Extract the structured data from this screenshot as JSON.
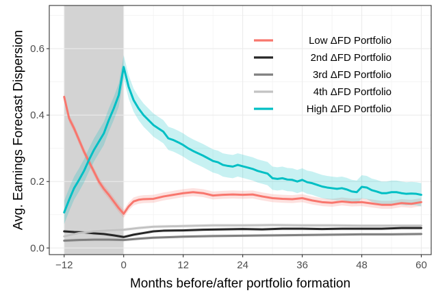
{
  "chart_data": {
    "type": "line",
    "title": "",
    "xlabel": "Months before/after portfolio formation",
    "ylabel": "Avg. Earnings Forecast Dispersion",
    "xlim": [
      -15,
      62
    ],
    "ylim": [
      -0.02,
      0.73
    ],
    "xticks": [
      -12,
      0,
      12,
      24,
      36,
      48,
      60
    ],
    "xtick_labels": [
      "−12",
      "0",
      "12",
      "24",
      "36",
      "48",
      "60"
    ],
    "yticks": [
      0.0,
      0.2,
      0.4,
      0.6
    ],
    "ytick_labels": [
      "0.0",
      "0.2",
      "0.4",
      "0.6"
    ],
    "grid": true,
    "legend_position": "top-right",
    "shaded_region": {
      "x_start": -12,
      "x_end": 0,
      "color": "#d3d3d3"
    },
    "series": [
      {
        "name": "Low ΔFD Portfolio",
        "color": "#f8766d",
        "band_color": "#f8766d",
        "points": [
          [
            -12,
            0.455
          ],
          [
            -11,
            0.39
          ],
          [
            -10,
            0.36
          ],
          [
            -9,
            0.325
          ],
          [
            -8,
            0.29
          ],
          [
            -7,
            0.26
          ],
          [
            -6,
            0.23
          ],
          [
            -5,
            0.2
          ],
          [
            -4,
            0.178
          ],
          [
            -3,
            0.16
          ],
          [
            -2,
            0.14
          ],
          [
            -1,
            0.12
          ],
          [
            0,
            0.103
          ],
          [
            1,
            0.125
          ],
          [
            2,
            0.14
          ],
          [
            3,
            0.145
          ],
          [
            4,
            0.147
          ],
          [
            6,
            0.148
          ],
          [
            8,
            0.155
          ],
          [
            10,
            0.16
          ],
          [
            12,
            0.165
          ],
          [
            14,
            0.168
          ],
          [
            16,
            0.165
          ],
          [
            18,
            0.158
          ],
          [
            20,
            0.16
          ],
          [
            22,
            0.161
          ],
          [
            24,
            0.16
          ],
          [
            26,
            0.161
          ],
          [
            28,
            0.155
          ],
          [
            30,
            0.15
          ],
          [
            32,
            0.148
          ],
          [
            34,
            0.147
          ],
          [
            36,
            0.15
          ],
          [
            38,
            0.143
          ],
          [
            40,
            0.138
          ],
          [
            42,
            0.136
          ],
          [
            44,
            0.14
          ],
          [
            46,
            0.137
          ],
          [
            48,
            0.138
          ],
          [
            50,
            0.134
          ],
          [
            52,
            0.13
          ],
          [
            54,
            0.13
          ],
          [
            56,
            0.135
          ],
          [
            58,
            0.133
          ],
          [
            60,
            0.138
          ]
        ],
        "band": 0.012
      },
      {
        "name": "2nd ΔFD Portfolio",
        "color": "#262626",
        "band_color": "#999999",
        "points": [
          [
            -12,
            0.05
          ],
          [
            -10,
            0.048
          ],
          [
            -8,
            0.047
          ],
          [
            -6,
            0.044
          ],
          [
            -4,
            0.042
          ],
          [
            -2,
            0.038
          ],
          [
            0,
            0.033
          ],
          [
            2,
            0.04
          ],
          [
            4,
            0.045
          ],
          [
            6,
            0.05
          ],
          [
            8,
            0.052
          ],
          [
            12,
            0.053
          ],
          [
            16,
            0.055
          ],
          [
            20,
            0.056
          ],
          [
            24,
            0.057
          ],
          [
            28,
            0.056
          ],
          [
            32,
            0.058
          ],
          [
            36,
            0.058
          ],
          [
            40,
            0.057
          ],
          [
            44,
            0.058
          ],
          [
            48,
            0.058
          ],
          [
            52,
            0.058
          ],
          [
            56,
            0.06
          ],
          [
            60,
            0.06
          ]
        ],
        "band": 0.005
      },
      {
        "name": "3rd ΔFD Portfolio",
        "color": "#7f7f7f",
        "band_color": "#b0b0b0",
        "points": [
          [
            -12,
            0.022
          ],
          [
            -9,
            0.024
          ],
          [
            -6,
            0.025
          ],
          [
            -3,
            0.025
          ],
          [
            0,
            0.024
          ],
          [
            3,
            0.028
          ],
          [
            6,
            0.031
          ],
          [
            12,
            0.034
          ],
          [
            18,
            0.036
          ],
          [
            24,
            0.037
          ],
          [
            30,
            0.038
          ],
          [
            36,
            0.039
          ],
          [
            42,
            0.04
          ],
          [
            48,
            0.041
          ],
          [
            54,
            0.041
          ],
          [
            60,
            0.042
          ]
        ],
        "band": 0.005
      },
      {
        "name": "4th ΔFD Portfolio",
        "color": "#c2c2c2",
        "band_color": "#dddddd",
        "points": [
          [
            -12,
            0.035
          ],
          [
            -9,
            0.045
          ],
          [
            -6,
            0.05
          ],
          [
            -3,
            0.053
          ],
          [
            0,
            0.055
          ],
          [
            3,
            0.06
          ],
          [
            6,
            0.064
          ],
          [
            12,
            0.066
          ],
          [
            18,
            0.068
          ],
          [
            24,
            0.068
          ],
          [
            30,
            0.069
          ],
          [
            36,
            0.068
          ],
          [
            42,
            0.068
          ],
          [
            48,
            0.067
          ],
          [
            54,
            0.067
          ],
          [
            60,
            0.067
          ]
        ],
        "band": 0.006
      },
      {
        "name": "High ΔFD Portfolio",
        "color": "#00bfc4",
        "band_color": "#00bfc4",
        "points": [
          [
            -12,
            0.107
          ],
          [
            -11,
            0.145
          ],
          [
            -10,
            0.18
          ],
          [
            -9,
            0.205
          ],
          [
            -8,
            0.232
          ],
          [
            -7,
            0.265
          ],
          [
            -6,
            0.295
          ],
          [
            -5,
            0.32
          ],
          [
            -4,
            0.345
          ],
          [
            -3,
            0.385
          ],
          [
            -2,
            0.42
          ],
          [
            -1,
            0.46
          ],
          [
            0,
            0.545
          ],
          [
            1,
            0.485
          ],
          [
            2,
            0.445
          ],
          [
            3,
            0.42
          ],
          [
            4,
            0.4
          ],
          [
            5,
            0.385
          ],
          [
            6,
            0.37
          ],
          [
            7,
            0.36
          ],
          [
            8,
            0.35
          ],
          [
            9,
            0.33
          ],
          [
            10,
            0.325
          ],
          [
            11,
            0.318
          ],
          [
            12,
            0.31
          ],
          [
            13,
            0.3
          ],
          [
            14,
            0.292
          ],
          [
            15,
            0.285
          ],
          [
            16,
            0.278
          ],
          [
            17,
            0.27
          ],
          [
            18,
            0.262
          ],
          [
            19,
            0.258
          ],
          [
            20,
            0.25
          ],
          [
            21,
            0.247
          ],
          [
            22,
            0.245
          ],
          [
            23,
            0.25
          ],
          [
            24,
            0.246
          ],
          [
            25,
            0.242
          ],
          [
            26,
            0.238
          ],
          [
            27,
            0.232
          ],
          [
            28,
            0.228
          ],
          [
            29,
            0.224
          ],
          [
            30,
            0.21
          ],
          [
            31,
            0.208
          ],
          [
            32,
            0.21
          ],
          [
            33,
            0.206
          ],
          [
            34,
            0.205
          ],
          [
            35,
            0.2
          ],
          [
            36,
            0.205
          ],
          [
            37,
            0.198
          ],
          [
            38,
            0.195
          ],
          [
            39,
            0.19
          ],
          [
            40,
            0.185
          ],
          [
            41,
            0.182
          ],
          [
            42,
            0.18
          ],
          [
            43,
            0.178
          ],
          [
            44,
            0.18
          ],
          [
            45,
            0.176
          ],
          [
            46,
            0.17
          ],
          [
            47,
            0.168
          ],
          [
            48,
            0.184
          ],
          [
            49,
            0.182
          ],
          [
            50,
            0.174
          ],
          [
            51,
            0.17
          ],
          [
            52,
            0.165
          ],
          [
            53,
            0.165
          ],
          [
            54,
            0.168
          ],
          [
            55,
            0.168
          ],
          [
            56,
            0.165
          ],
          [
            57,
            0.163
          ],
          [
            58,
            0.164
          ],
          [
            59,
            0.163
          ],
          [
            60,
            0.16
          ]
        ],
        "band": 0.035
      }
    ]
  }
}
